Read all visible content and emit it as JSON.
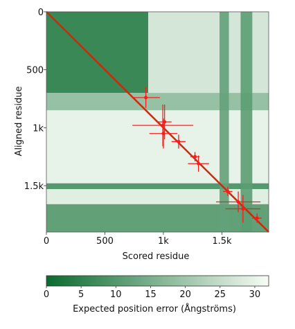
{
  "chart_data": {
    "type": "heatmap",
    "title": "",
    "xlabel": "Scored residue",
    "ylabel": "Aligned residue",
    "x_range": [
      0,
      1900
    ],
    "y_range": [
      0,
      1900
    ],
    "x_ticks": [
      {
        "value": 0,
        "label": "0"
      },
      {
        "value": 500,
        "label": "500"
      },
      {
        "value": 1000,
        "label": "1k"
      },
      {
        "value": 1500,
        "label": "1.5k"
      }
    ],
    "y_ticks": [
      {
        "value": 0,
        "label": "0"
      },
      {
        "value": 500,
        "label": "500"
      },
      {
        "value": 1000,
        "label": "1k"
      },
      {
        "value": 1500,
        "label": "1.5k"
      }
    ],
    "colorbar": {
      "label": "Expected position error (Ångströms)",
      "min": 0,
      "max": 32,
      "ticks": [
        {
          "value": 0,
          "label": "0"
        },
        {
          "value": 5,
          "label": "5"
        },
        {
          "value": 10,
          "label": "10"
        },
        {
          "value": 15,
          "label": "15"
        },
        {
          "value": 20,
          "label": "20"
        },
        {
          "value": 25,
          "label": "25"
        },
        {
          "value": 30,
          "label": "30"
        }
      ],
      "color_low": "#0a6b2e",
      "color_high": "#f7fcf5"
    },
    "blocks": [
      {
        "x": [
          0,
          870
        ],
        "y": [
          0,
          700
        ],
        "error": 4
      },
      {
        "x": [
          870,
          1900
        ],
        "y": [
          0,
          700
        ],
        "error": 27
      },
      {
        "x": [
          0,
          1900
        ],
        "y": [
          700,
          850
        ],
        "error": 18
      },
      {
        "x": [
          0,
          1900
        ],
        "y": [
          850,
          1480
        ],
        "error": 30
      },
      {
        "x": [
          0,
          1900
        ],
        "y": [
          1480,
          1530
        ],
        "error": 8
      },
      {
        "x": [
          0,
          1900
        ],
        "y": [
          1530,
          1660
        ],
        "error": 29
      },
      {
        "x": [
          0,
          1900
        ],
        "y": [
          1660,
          1900
        ],
        "error": 10
      },
      {
        "x": [
          1480,
          1560
        ],
        "y": [
          0,
          1900
        ],
        "error": 12
      },
      {
        "x": [
          1660,
          1760
        ],
        "y": [
          0,
          1900
        ],
        "error": 11
      }
    ],
    "diagonal_color": "#cc2a0d",
    "crosslinks_color": "#ff1a1a",
    "crosslinks": [
      {
        "x": 995,
        "y": 980,
        "x_half": 260,
        "y_half": 180
      },
      {
        "x": 1000,
        "y": 1050,
        "x_half": 120,
        "y_half": 130
      },
      {
        "x": 1010,
        "y": 950,
        "x_half": 60,
        "y_half": 150
      },
      {
        "x": 850,
        "y": 740,
        "x_half": 120,
        "y_half": 90
      },
      {
        "x": 1300,
        "y": 1310,
        "x_half": 90,
        "y_half": 70
      },
      {
        "x": 1270,
        "y": 1250,
        "x_half": 40,
        "y_half": 40
      },
      {
        "x": 1130,
        "y": 1120,
        "x_half": 60,
        "y_half": 60
      },
      {
        "x": 1550,
        "y": 1550,
        "x_half": 40,
        "y_half": 40
      },
      {
        "x": 1640,
        "y": 1640,
        "x_half": 190,
        "y_half": 90
      },
      {
        "x": 1680,
        "y": 1700,
        "x_half": 150,
        "y_half": 120
      },
      {
        "x": 1800,
        "y": 1780,
        "x_half": 40,
        "y_half": 40
      }
    ]
  }
}
